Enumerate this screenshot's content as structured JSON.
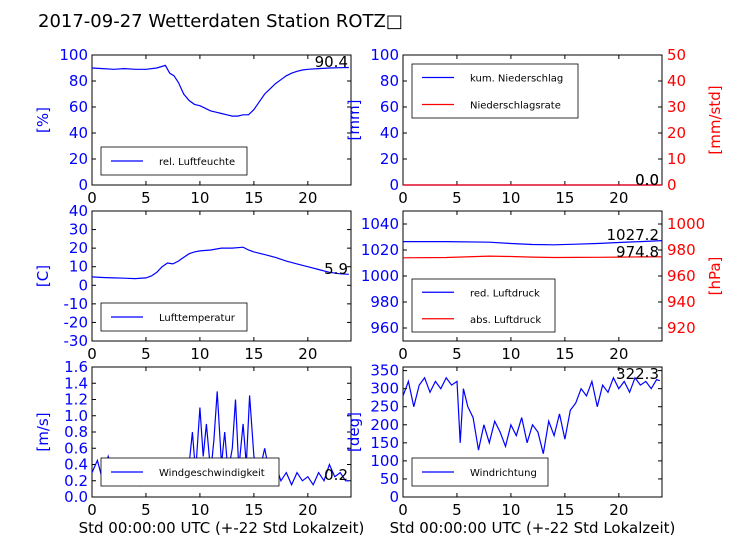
{
  "title": "2017-09-27 Wetterdaten Station ROTZ□",
  "colors": {
    "primary": "#0000ff",
    "secondary": "#ff0000",
    "frame": "#000000"
  },
  "chart_data": [
    {
      "id": "humidity",
      "type": "line",
      "ylabel": "[%]",
      "xlim": [
        0,
        24
      ],
      "ylim": [
        0,
        100
      ],
      "xticks": [
        0,
        5,
        10,
        15,
        20
      ],
      "yticks": [
        0,
        20,
        40,
        60,
        80,
        100
      ],
      "current_value": "90.4",
      "legend": {
        "position": "lower-left",
        "entries": [
          "rel. Luftfeuchte"
        ]
      },
      "series": [
        {
          "name": "rel. Luftfeuchte",
          "color": "#0000ff",
          "x": [
            0,
            1,
            2,
            3,
            4,
            5,
            6,
            6.8,
            7.2,
            7.6,
            8,
            8.5,
            9,
            9.5,
            10,
            10.5,
            11,
            11.5,
            12,
            12.5,
            13,
            13.5,
            14,
            14.5,
            15,
            15.5,
            16,
            16.5,
            17,
            17.5,
            18,
            18.5,
            19,
            19.5,
            20,
            21,
            22,
            23,
            23.8
          ],
          "y": [
            90,
            89.5,
            89,
            89.5,
            89,
            89,
            90,
            92,
            86,
            84,
            79,
            70,
            65,
            62,
            61,
            59,
            57,
            56,
            55,
            54,
            53,
            53,
            54,
            54,
            58,
            64,
            70,
            74,
            78,
            81,
            84,
            86,
            87.5,
            88.5,
            89,
            89.5,
            90,
            90.2,
            90.4
          ]
        }
      ]
    },
    {
      "id": "precipitation",
      "type": "line",
      "ylabel": "[mm]",
      "ylabel_right": "[mm/std]",
      "xlim": [
        0,
        24
      ],
      "ylim": [
        0,
        100
      ],
      "ylim_right": [
        0,
        50
      ],
      "xticks": [
        0,
        5,
        10,
        15,
        20
      ],
      "yticks": [
        0,
        20,
        40,
        60,
        80,
        100
      ],
      "yticks_right": [
        0,
        10,
        20,
        30,
        40,
        50
      ],
      "current_values": [
        "0.0",
        "0.0"
      ],
      "legend": {
        "position": "upper-left",
        "entries": [
          "kum. Niederschlag",
          "Niederschlagsrate"
        ]
      },
      "series": [
        {
          "name": "kum. Niederschlag",
          "color": "#0000ff",
          "axis": "left",
          "x": [
            0,
            24
          ],
          "y": [
            0,
            0
          ]
        },
        {
          "name": "Niederschlagsrate",
          "color": "#ff0000",
          "axis": "right",
          "x": [
            0,
            24
          ],
          "y": [
            0,
            0
          ]
        }
      ]
    },
    {
      "id": "temperature",
      "type": "line",
      "ylabel": "[C]",
      "xlim": [
        0,
        24
      ],
      "ylim": [
        -30,
        40
      ],
      "xticks": [
        0,
        5,
        10,
        15,
        20
      ],
      "yticks": [
        -30,
        -20,
        -10,
        0,
        10,
        20,
        30,
        40
      ],
      "current_value": "5.9",
      "legend": {
        "position": "lower-left",
        "entries": [
          "Lufttemperatur"
        ]
      },
      "series": [
        {
          "name": "Lufttemperatur",
          "color": "#0000ff",
          "x": [
            0,
            1,
            2,
            3,
            4,
            5,
            5.5,
            6,
            6.5,
            7,
            7.5,
            8,
            8.5,
            9,
            9.5,
            10,
            11,
            12,
            13,
            14,
            14.5,
            15,
            16,
            17,
            18,
            19,
            20,
            21,
            22,
            23,
            23.8
          ],
          "y": [
            4.5,
            4.2,
            4,
            3.8,
            3.6,
            4,
            5,
            7,
            10,
            12,
            11.5,
            13,
            15,
            17,
            18,
            18.5,
            19,
            20,
            20,
            20.5,
            19,
            18,
            16.5,
            15,
            13,
            11.5,
            10,
            8.5,
            7,
            6.2,
            5.9
          ]
        }
      ]
    },
    {
      "id": "pressure",
      "type": "line",
      "ylabel": "[hPa]",
      "xlim": [
        0,
        24
      ],
      "ylim": [
        950,
        1050
      ],
      "ylim_right": [
        910,
        1010
      ],
      "xticks": [
        0,
        5,
        10,
        15,
        20
      ],
      "yticks": [
        960,
        980,
        1000,
        1020,
        1040
      ],
      "yticks_right": [
        920,
        940,
        960,
        980,
        1000
      ],
      "current_values": [
        "1027.2",
        "974.8"
      ],
      "legend": {
        "position": "lower-left",
        "entries": [
          "red. Luftdruck",
          "abs. Luftdruck"
        ]
      },
      "series": [
        {
          "name": "red. Luftdruck",
          "color": "#0000ff",
          "axis": "left",
          "x": [
            0,
            4,
            8,
            10,
            12,
            14,
            16,
            18,
            20,
            22,
            24
          ],
          "y": [
            1026.5,
            1026.5,
            1026,
            1025,
            1024.2,
            1024,
            1024.5,
            1025,
            1025.8,
            1026.5,
            1027.2
          ]
        },
        {
          "name": "abs. Luftdruck",
          "color": "#ff0000",
          "axis": "right",
          "x": [
            0,
            4,
            8,
            10,
            12,
            14,
            16,
            18,
            20,
            22,
            24
          ],
          "y": [
            974,
            974.2,
            975.3,
            975,
            974.5,
            974.2,
            974.3,
            974.4,
            974.5,
            974.7,
            974.8
          ]
        }
      ]
    },
    {
      "id": "wind-speed",
      "type": "line",
      "ylabel": "[m/s]",
      "xlabel": "Std 00:00:00 UTC (+-22 Std Lokalzeit)",
      "xlim": [
        0,
        24
      ],
      "ylim": [
        0,
        1.6
      ],
      "xticks": [
        0,
        5,
        10,
        15,
        20
      ],
      "yticks": [
        0.0,
        0.2,
        0.4,
        0.6,
        0.8,
        1.0,
        1.2,
        1.4,
        1.6
      ],
      "current_value": "0.2",
      "legend": {
        "position": "lower-center",
        "entries": [
          "Windgeschwindigkeit"
        ]
      },
      "series": [
        {
          "name": "Windgeschwindigkeit",
          "color": "#0000ff",
          "x": [
            0,
            0.5,
            1,
            1.5,
            2,
            2.5,
            3,
            3.5,
            4,
            4.5,
            5,
            5.5,
            6,
            6.5,
            7,
            7.5,
            8,
            8.5,
            9,
            9.3,
            9.6,
            10,
            10.3,
            10.6,
            11,
            11.3,
            11.6,
            12,
            12.3,
            12.6,
            13,
            13.3,
            13.6,
            14,
            14.3,
            14.6,
            15,
            15.5,
            16,
            16.5,
            17,
            17.5,
            18,
            18.5,
            19,
            19.5,
            20,
            20.5,
            21,
            21.5,
            22,
            22.5,
            23,
            23.5,
            23.8
          ],
          "y": [
            0.3,
            0.45,
            0.2,
            0.5,
            0.3,
            0.25,
            0.45,
            0.2,
            0.35,
            0.15,
            0.4,
            0.2,
            0.3,
            0.15,
            0.25,
            0.2,
            0.35,
            0.2,
            0.4,
            0.8,
            0.3,
            1.1,
            0.5,
            0.9,
            0.3,
            0.7,
            1.3,
            0.4,
            0.8,
            0.3,
            0.6,
            1.2,
            0.35,
            0.9,
            0.4,
            1.25,
            0.5,
            0.3,
            0.6,
            0.25,
            0.4,
            0.2,
            0.3,
            0.15,
            0.3,
            0.2,
            0.25,
            0.15,
            0.3,
            0.2,
            0.4,
            0.25,
            0.3,
            0.2,
            0.2
          ]
        }
      ]
    },
    {
      "id": "wind-direction",
      "type": "line",
      "ylabel": "[deg]",
      "xlabel": "Std 00:00:00 UTC (+-22 Std Lokalzeit)",
      "xlim": [
        0,
        24
      ],
      "ylim": [
        0,
        360
      ],
      "xticks": [
        0,
        5,
        10,
        15,
        20
      ],
      "yticks": [
        0,
        50,
        100,
        150,
        200,
        250,
        300,
        350
      ],
      "current_value": "322.3",
      "legend": {
        "position": "lower-left",
        "entries": [
          "Windrichtung"
        ]
      },
      "series": [
        {
          "name": "Windrichtung",
          "color": "#0000ff",
          "x": [
            0,
            0.5,
            1,
            1.5,
            2,
            2.5,
            3,
            3.5,
            4,
            4.5,
            5,
            5.3,
            5.6,
            6,
            6.5,
            7,
            7.5,
            8,
            8.5,
            9,
            9.5,
            10,
            10.5,
            11,
            11.5,
            12,
            12.5,
            13,
            13.5,
            14,
            14.5,
            15,
            15.5,
            16,
            16.5,
            17,
            17.5,
            18,
            18.5,
            19,
            19.5,
            20,
            20.5,
            21,
            21.5,
            22,
            22.5,
            23,
            23.5,
            23.8
          ],
          "y": [
            280,
            320,
            250,
            310,
            330,
            290,
            320,
            300,
            330,
            310,
            320,
            150,
            300,
            250,
            220,
            130,
            200,
            150,
            210,
            180,
            140,
            200,
            170,
            220,
            150,
            200,
            180,
            120,
            210,
            170,
            230,
            160,
            240,
            260,
            300,
            280,
            320,
            250,
            310,
            290,
            330,
            300,
            320,
            290,
            330,
            310,
            320,
            300,
            325,
            322
          ]
        }
      ]
    }
  ]
}
